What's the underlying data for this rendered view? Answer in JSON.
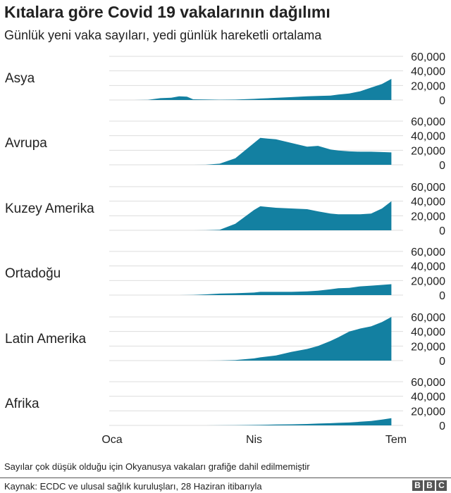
{
  "title": "Kıtalara göre Covid 19 vakalarının dağılımı",
  "subtitle": "Günlük yeni vaka sayıları, yedi günlük hareketli ortalama",
  "note": "Sayılar çok düşük olduğu için Okyanusya vakaları grafiğe dahil edilmemiştir",
  "source": "Kaynak: ECDC ve ulusal sağlık kuruluşları, 28 Haziran itibarıyla",
  "logo": "BBC",
  "colors": {
    "area": "#1380A1",
    "grid": "#dddddd"
  },
  "chart_data": {
    "type": "area",
    "x_ticks": [
      "Oca",
      "Nis",
      "Tem"
    ],
    "x_range": [
      "2020-01-01",
      "2020-07-01"
    ],
    "y_ticks": [
      "0",
      "20,000",
      "40,000",
      "60,000"
    ],
    "ylim": [
      0,
      60000
    ],
    "grid": true,
    "x": [
      "2020-01-01",
      "2020-01-15",
      "2020-01-24",
      "2020-02-01",
      "2020-02-08",
      "2020-02-13",
      "2020-02-18",
      "2020-02-22",
      "2020-03-01",
      "2020-03-10",
      "2020-03-20",
      "2020-04-01",
      "2020-04-05",
      "2020-04-15",
      "2020-04-25",
      "2020-05-05",
      "2020-05-12",
      "2020-05-20",
      "2020-05-25",
      "2020-06-01",
      "2020-06-08",
      "2020-06-15",
      "2020-06-22",
      "2020-06-28"
    ],
    "series": [
      {
        "name": "Asya",
        "values": [
          0,
          0,
          300,
          2500,
          3200,
          5000,
          4500,
          1000,
          800,
          400,
          600,
          1500,
          2000,
          3000,
          4000,
          5000,
          5500,
          6000,
          7500,
          9000,
          12000,
          17000,
          22000,
          29000
        ]
      },
      {
        "name": "Avrupa",
        "values": [
          0,
          0,
          0,
          0,
          0,
          0,
          0,
          0,
          100,
          1500,
          9000,
          30000,
          37000,
          35000,
          30000,
          25000,
          26000,
          21000,
          19500,
          18500,
          18000,
          18000,
          17500,
          17000
        ]
      },
      {
        "name": "Kuzey Amerika",
        "values": [
          0,
          0,
          0,
          0,
          0,
          0,
          0,
          0,
          50,
          800,
          9000,
          28000,
          33000,
          31000,
          30000,
          29000,
          26000,
          23000,
          22000,
          22000,
          22000,
          23000,
          30000,
          40000
        ]
      },
      {
        "name": "Ortadoğu",
        "values": [
          0,
          0,
          0,
          0,
          0,
          0,
          100,
          300,
          1000,
          2000,
          2500,
          3500,
          4500,
          4500,
          4500,
          5000,
          6000,
          8000,
          9500,
          10000,
          12000,
          13000,
          14000,
          15000
        ]
      },
      {
        "name": "Latin Amerika",
        "values": [
          0,
          0,
          0,
          0,
          0,
          0,
          0,
          0,
          10,
          100,
          800,
          3000,
          4500,
          7000,
          12000,
          16000,
          20000,
          27000,
          32000,
          40000,
          44000,
          47000,
          53000,
          60000
        ]
      },
      {
        "name": "Afrika",
        "values": [
          0,
          0,
          0,
          0,
          0,
          0,
          0,
          0,
          10,
          50,
          200,
          600,
          800,
          1200,
          1500,
          1900,
          2500,
          3000,
          3500,
          4000,
          5000,
          6000,
          8000,
          10000
        ]
      }
    ]
  }
}
